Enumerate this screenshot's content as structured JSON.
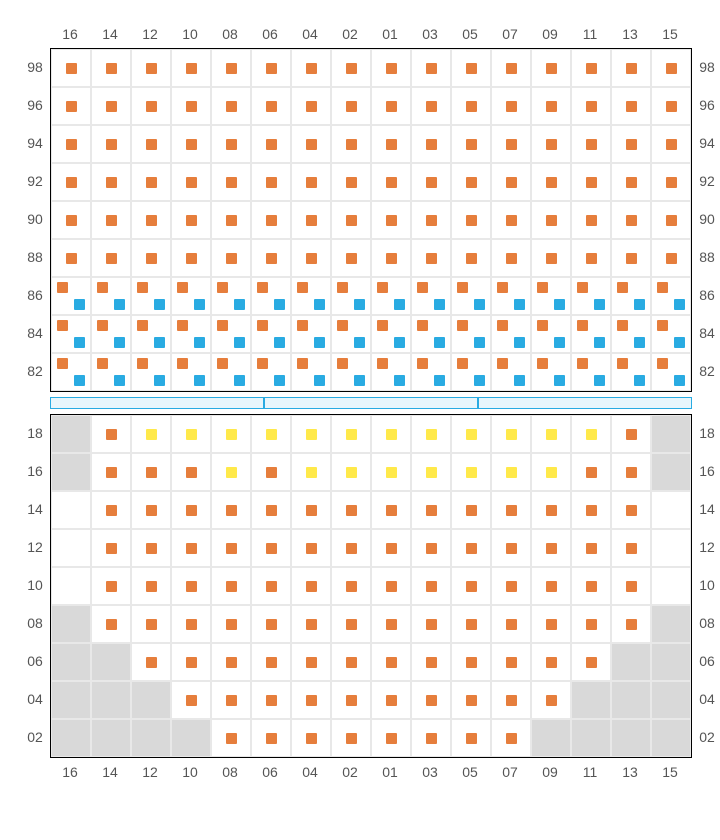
{
  "colors": {
    "orange": "#e67e3c",
    "blue": "#29abe2",
    "yellow": "#ffe94a",
    "void": "#d9d9d9",
    "grid": "#e8e8e8",
    "divider_border": "#29abe2",
    "divider_fill": "#e8f6fc"
  },
  "columns": [
    "16",
    "14",
    "12",
    "10",
    "08",
    "06",
    "04",
    "02",
    "01",
    "03",
    "05",
    "07",
    "09",
    "11",
    "13",
    "15"
  ],
  "upper": {
    "rows": [
      "98",
      "96",
      "94",
      "92",
      "90",
      "88",
      "86",
      "84",
      "82"
    ],
    "cells": [
      [
        {
          "t": "s",
          "v": "o"
        },
        {
          "t": "s",
          "v": "o"
        },
        {
          "t": "s",
          "v": "o"
        },
        {
          "t": "s",
          "v": "o"
        },
        {
          "t": "s",
          "v": "o"
        },
        {
          "t": "s",
          "v": "o"
        },
        {
          "t": "s",
          "v": "o"
        },
        {
          "t": "s",
          "v": "o"
        },
        {
          "t": "s",
          "v": "o"
        },
        {
          "t": "s",
          "v": "o"
        },
        {
          "t": "s",
          "v": "o"
        },
        {
          "t": "s",
          "v": "o"
        },
        {
          "t": "s",
          "v": "o"
        },
        {
          "t": "s",
          "v": "o"
        },
        {
          "t": "s",
          "v": "o"
        },
        {
          "t": "s",
          "v": "o"
        }
      ],
      [
        {
          "t": "s",
          "v": "o"
        },
        {
          "t": "s",
          "v": "o"
        },
        {
          "t": "s",
          "v": "o"
        },
        {
          "t": "s",
          "v": "o"
        },
        {
          "t": "s",
          "v": "o"
        },
        {
          "t": "s",
          "v": "o"
        },
        {
          "t": "s",
          "v": "o"
        },
        {
          "t": "s",
          "v": "o"
        },
        {
          "t": "s",
          "v": "o"
        },
        {
          "t": "s",
          "v": "o"
        },
        {
          "t": "s",
          "v": "o"
        },
        {
          "t": "s",
          "v": "o"
        },
        {
          "t": "s",
          "v": "o"
        },
        {
          "t": "s",
          "v": "o"
        },
        {
          "t": "s",
          "v": "o"
        },
        {
          "t": "s",
          "v": "o"
        }
      ],
      [
        {
          "t": "s",
          "v": "o"
        },
        {
          "t": "s",
          "v": "o"
        },
        {
          "t": "s",
          "v": "o"
        },
        {
          "t": "s",
          "v": "o"
        },
        {
          "t": "s",
          "v": "o"
        },
        {
          "t": "s",
          "v": "o"
        },
        {
          "t": "s",
          "v": "o"
        },
        {
          "t": "s",
          "v": "o"
        },
        {
          "t": "s",
          "v": "o"
        },
        {
          "t": "s",
          "v": "o"
        },
        {
          "t": "s",
          "v": "o"
        },
        {
          "t": "s",
          "v": "o"
        },
        {
          "t": "s",
          "v": "o"
        },
        {
          "t": "s",
          "v": "o"
        },
        {
          "t": "s",
          "v": "o"
        },
        {
          "t": "s",
          "v": "o"
        }
      ],
      [
        {
          "t": "s",
          "v": "o"
        },
        {
          "t": "s",
          "v": "o"
        },
        {
          "t": "s",
          "v": "o"
        },
        {
          "t": "s",
          "v": "o"
        },
        {
          "t": "s",
          "v": "o"
        },
        {
          "t": "s",
          "v": "o"
        },
        {
          "t": "s",
          "v": "o"
        },
        {
          "t": "s",
          "v": "o"
        },
        {
          "t": "s",
          "v": "o"
        },
        {
          "t": "s",
          "v": "o"
        },
        {
          "t": "s",
          "v": "o"
        },
        {
          "t": "s",
          "v": "o"
        },
        {
          "t": "s",
          "v": "o"
        },
        {
          "t": "s",
          "v": "o"
        },
        {
          "t": "s",
          "v": "o"
        },
        {
          "t": "s",
          "v": "o"
        }
      ],
      [
        {
          "t": "s",
          "v": "o"
        },
        {
          "t": "s",
          "v": "o"
        },
        {
          "t": "s",
          "v": "o"
        },
        {
          "t": "s",
          "v": "o"
        },
        {
          "t": "s",
          "v": "o"
        },
        {
          "t": "s",
          "v": "o"
        },
        {
          "t": "s",
          "v": "o"
        },
        {
          "t": "s",
          "v": "o"
        },
        {
          "t": "s",
          "v": "o"
        },
        {
          "t": "s",
          "v": "o"
        },
        {
          "t": "s",
          "v": "o"
        },
        {
          "t": "s",
          "v": "o"
        },
        {
          "t": "s",
          "v": "o"
        },
        {
          "t": "s",
          "v": "o"
        },
        {
          "t": "s",
          "v": "o"
        },
        {
          "t": "s",
          "v": "o"
        }
      ],
      [
        {
          "t": "s",
          "v": "o"
        },
        {
          "t": "s",
          "v": "o"
        },
        {
          "t": "s",
          "v": "o"
        },
        {
          "t": "s",
          "v": "o"
        },
        {
          "t": "s",
          "v": "o"
        },
        {
          "t": "s",
          "v": "o"
        },
        {
          "t": "s",
          "v": "o"
        },
        {
          "t": "s",
          "v": "o"
        },
        {
          "t": "s",
          "v": "o"
        },
        {
          "t": "s",
          "v": "o"
        },
        {
          "t": "s",
          "v": "o"
        },
        {
          "t": "s",
          "v": "o"
        },
        {
          "t": "s",
          "v": "o"
        },
        {
          "t": "s",
          "v": "o"
        },
        {
          "t": "s",
          "v": "o"
        },
        {
          "t": "s",
          "v": "o"
        }
      ],
      [
        {
          "t": "d",
          "v": [
            "o",
            "b"
          ]
        },
        {
          "t": "d",
          "v": [
            "o",
            "b"
          ]
        },
        {
          "t": "d",
          "v": [
            "o",
            "b"
          ]
        },
        {
          "t": "d",
          "v": [
            "o",
            "b"
          ]
        },
        {
          "t": "d",
          "v": [
            "o",
            "b"
          ]
        },
        {
          "t": "d",
          "v": [
            "o",
            "b"
          ]
        },
        {
          "t": "d",
          "v": [
            "o",
            "b"
          ]
        },
        {
          "t": "d",
          "v": [
            "o",
            "b"
          ]
        },
        {
          "t": "d",
          "v": [
            "o",
            "b"
          ]
        },
        {
          "t": "d",
          "v": [
            "o",
            "b"
          ]
        },
        {
          "t": "d",
          "v": [
            "o",
            "b"
          ]
        },
        {
          "t": "d",
          "v": [
            "o",
            "b"
          ]
        },
        {
          "t": "d",
          "v": [
            "o",
            "b"
          ]
        },
        {
          "t": "d",
          "v": [
            "o",
            "b"
          ]
        },
        {
          "t": "d",
          "v": [
            "o",
            "b"
          ]
        },
        {
          "t": "d",
          "v": [
            "o",
            "b"
          ]
        }
      ],
      [
        {
          "t": "d",
          "v": [
            "o",
            "b"
          ]
        },
        {
          "t": "d",
          "v": [
            "o",
            "b"
          ]
        },
        {
          "t": "d",
          "v": [
            "o",
            "b"
          ]
        },
        {
          "t": "d",
          "v": [
            "o",
            "b"
          ]
        },
        {
          "t": "d",
          "v": [
            "o",
            "b"
          ]
        },
        {
          "t": "d",
          "v": [
            "o",
            "b"
          ]
        },
        {
          "t": "d",
          "v": [
            "o",
            "b"
          ]
        },
        {
          "t": "d",
          "v": [
            "o",
            "b"
          ]
        },
        {
          "t": "d",
          "v": [
            "o",
            "b"
          ]
        },
        {
          "t": "d",
          "v": [
            "o",
            "b"
          ]
        },
        {
          "t": "d",
          "v": [
            "o",
            "b"
          ]
        },
        {
          "t": "d",
          "v": [
            "o",
            "b"
          ]
        },
        {
          "t": "d",
          "v": [
            "o",
            "b"
          ]
        },
        {
          "t": "d",
          "v": [
            "o",
            "b"
          ]
        },
        {
          "t": "d",
          "v": [
            "o",
            "b"
          ]
        },
        {
          "t": "d",
          "v": [
            "o",
            "b"
          ]
        }
      ],
      [
        {
          "t": "d",
          "v": [
            "o",
            "b"
          ]
        },
        {
          "t": "d",
          "v": [
            "o",
            "b"
          ]
        },
        {
          "t": "d",
          "v": [
            "o",
            "b"
          ]
        },
        {
          "t": "d",
          "v": [
            "o",
            "b"
          ]
        },
        {
          "t": "d",
          "v": [
            "o",
            "b"
          ]
        },
        {
          "t": "d",
          "v": [
            "o",
            "b"
          ]
        },
        {
          "t": "d",
          "v": [
            "o",
            "b"
          ]
        },
        {
          "t": "d",
          "v": [
            "o",
            "b"
          ]
        },
        {
          "t": "d",
          "v": [
            "o",
            "b"
          ]
        },
        {
          "t": "d",
          "v": [
            "o",
            "b"
          ]
        },
        {
          "t": "d",
          "v": [
            "o",
            "b"
          ]
        },
        {
          "t": "d",
          "v": [
            "o",
            "b"
          ]
        },
        {
          "t": "d",
          "v": [
            "o",
            "b"
          ]
        },
        {
          "t": "d",
          "v": [
            "o",
            "b"
          ]
        },
        {
          "t": "d",
          "v": [
            "o",
            "b"
          ]
        },
        {
          "t": "d",
          "v": [
            "o",
            "b"
          ]
        }
      ]
    ]
  },
  "lower": {
    "rows": [
      "18",
      "16",
      "14",
      "12",
      "10",
      "08",
      "06",
      "04",
      "02"
    ],
    "cells": [
      [
        {
          "t": "v"
        },
        {
          "t": "s",
          "v": "o"
        },
        {
          "t": "s",
          "v": "y"
        },
        {
          "t": "s",
          "v": "y"
        },
        {
          "t": "s",
          "v": "y"
        },
        {
          "t": "s",
          "v": "y"
        },
        {
          "t": "s",
          "v": "y"
        },
        {
          "t": "s",
          "v": "y"
        },
        {
          "t": "s",
          "v": "y"
        },
        {
          "t": "s",
          "v": "y"
        },
        {
          "t": "s",
          "v": "y"
        },
        {
          "t": "s",
          "v": "y"
        },
        {
          "t": "s",
          "v": "y"
        },
        {
          "t": "s",
          "v": "y"
        },
        {
          "t": "s",
          "v": "o"
        },
        {
          "t": "v"
        }
      ],
      [
        {
          "t": "v"
        },
        {
          "t": "s",
          "v": "o"
        },
        {
          "t": "s",
          "v": "o"
        },
        {
          "t": "s",
          "v": "o"
        },
        {
          "t": "s",
          "v": "y"
        },
        {
          "t": "s",
          "v": "o"
        },
        {
          "t": "s",
          "v": "y"
        },
        {
          "t": "s",
          "v": "y"
        },
        {
          "t": "s",
          "v": "y"
        },
        {
          "t": "s",
          "v": "y"
        },
        {
          "t": "s",
          "v": "y"
        },
        {
          "t": "s",
          "v": "y"
        },
        {
          "t": "s",
          "v": "y"
        },
        {
          "t": "s",
          "v": "o"
        },
        {
          "t": "s",
          "v": "o"
        },
        {
          "t": "v"
        }
      ],
      [
        {
          "t": "e"
        },
        {
          "t": "s",
          "v": "o"
        },
        {
          "t": "s",
          "v": "o"
        },
        {
          "t": "s",
          "v": "o"
        },
        {
          "t": "s",
          "v": "o"
        },
        {
          "t": "s",
          "v": "o"
        },
        {
          "t": "s",
          "v": "o"
        },
        {
          "t": "s",
          "v": "o"
        },
        {
          "t": "s",
          "v": "o"
        },
        {
          "t": "s",
          "v": "o"
        },
        {
          "t": "s",
          "v": "o"
        },
        {
          "t": "s",
          "v": "o"
        },
        {
          "t": "s",
          "v": "o"
        },
        {
          "t": "s",
          "v": "o"
        },
        {
          "t": "s",
          "v": "o"
        },
        {
          "t": "e"
        }
      ],
      [
        {
          "t": "e"
        },
        {
          "t": "s",
          "v": "o"
        },
        {
          "t": "s",
          "v": "o"
        },
        {
          "t": "s",
          "v": "o"
        },
        {
          "t": "s",
          "v": "o"
        },
        {
          "t": "s",
          "v": "o"
        },
        {
          "t": "s",
          "v": "o"
        },
        {
          "t": "s",
          "v": "o"
        },
        {
          "t": "s",
          "v": "o"
        },
        {
          "t": "s",
          "v": "o"
        },
        {
          "t": "s",
          "v": "o"
        },
        {
          "t": "s",
          "v": "o"
        },
        {
          "t": "s",
          "v": "o"
        },
        {
          "t": "s",
          "v": "o"
        },
        {
          "t": "s",
          "v": "o"
        },
        {
          "t": "e"
        }
      ],
      [
        {
          "t": "e"
        },
        {
          "t": "s",
          "v": "o"
        },
        {
          "t": "s",
          "v": "o"
        },
        {
          "t": "s",
          "v": "o"
        },
        {
          "t": "s",
          "v": "o"
        },
        {
          "t": "s",
          "v": "o"
        },
        {
          "t": "s",
          "v": "o"
        },
        {
          "t": "s",
          "v": "o"
        },
        {
          "t": "s",
          "v": "o"
        },
        {
          "t": "s",
          "v": "o"
        },
        {
          "t": "s",
          "v": "o"
        },
        {
          "t": "s",
          "v": "o"
        },
        {
          "t": "s",
          "v": "o"
        },
        {
          "t": "s",
          "v": "o"
        },
        {
          "t": "s",
          "v": "o"
        },
        {
          "t": "e"
        }
      ],
      [
        {
          "t": "v"
        },
        {
          "t": "s",
          "v": "o"
        },
        {
          "t": "s",
          "v": "o"
        },
        {
          "t": "s",
          "v": "o"
        },
        {
          "t": "s",
          "v": "o"
        },
        {
          "t": "s",
          "v": "o"
        },
        {
          "t": "s",
          "v": "o"
        },
        {
          "t": "s",
          "v": "o"
        },
        {
          "t": "s",
          "v": "o"
        },
        {
          "t": "s",
          "v": "o"
        },
        {
          "t": "s",
          "v": "o"
        },
        {
          "t": "s",
          "v": "o"
        },
        {
          "t": "s",
          "v": "o"
        },
        {
          "t": "s",
          "v": "o"
        },
        {
          "t": "s",
          "v": "o"
        },
        {
          "t": "v"
        }
      ],
      [
        {
          "t": "v"
        },
        {
          "t": "v"
        },
        {
          "t": "s",
          "v": "o"
        },
        {
          "t": "s",
          "v": "o"
        },
        {
          "t": "s",
          "v": "o"
        },
        {
          "t": "s",
          "v": "o"
        },
        {
          "t": "s",
          "v": "o"
        },
        {
          "t": "s",
          "v": "o"
        },
        {
          "t": "s",
          "v": "o"
        },
        {
          "t": "s",
          "v": "o"
        },
        {
          "t": "s",
          "v": "o"
        },
        {
          "t": "s",
          "v": "o"
        },
        {
          "t": "s",
          "v": "o"
        },
        {
          "t": "s",
          "v": "o"
        },
        {
          "t": "v"
        },
        {
          "t": "v"
        }
      ],
      [
        {
          "t": "v"
        },
        {
          "t": "v"
        },
        {
          "t": "v"
        },
        {
          "t": "s",
          "v": "o"
        },
        {
          "t": "s",
          "v": "o"
        },
        {
          "t": "s",
          "v": "o"
        },
        {
          "t": "s",
          "v": "o"
        },
        {
          "t": "s",
          "v": "o"
        },
        {
          "t": "s",
          "v": "o"
        },
        {
          "t": "s",
          "v": "o"
        },
        {
          "t": "s",
          "v": "o"
        },
        {
          "t": "s",
          "v": "o"
        },
        {
          "t": "s",
          "v": "o"
        },
        {
          "t": "v"
        },
        {
          "t": "v"
        },
        {
          "t": "v"
        }
      ],
      [
        {
          "t": "v"
        },
        {
          "t": "v"
        },
        {
          "t": "v"
        },
        {
          "t": "v"
        },
        {
          "t": "s",
          "v": "o"
        },
        {
          "t": "s",
          "v": "o"
        },
        {
          "t": "s",
          "v": "o"
        },
        {
          "t": "s",
          "v": "o"
        },
        {
          "t": "s",
          "v": "o"
        },
        {
          "t": "s",
          "v": "o"
        },
        {
          "t": "s",
          "v": "o"
        },
        {
          "t": "s",
          "v": "o"
        },
        {
          "t": "v"
        },
        {
          "t": "v"
        },
        {
          "t": "v"
        },
        {
          "t": "v"
        }
      ]
    ]
  },
  "divider_segments": 3
}
